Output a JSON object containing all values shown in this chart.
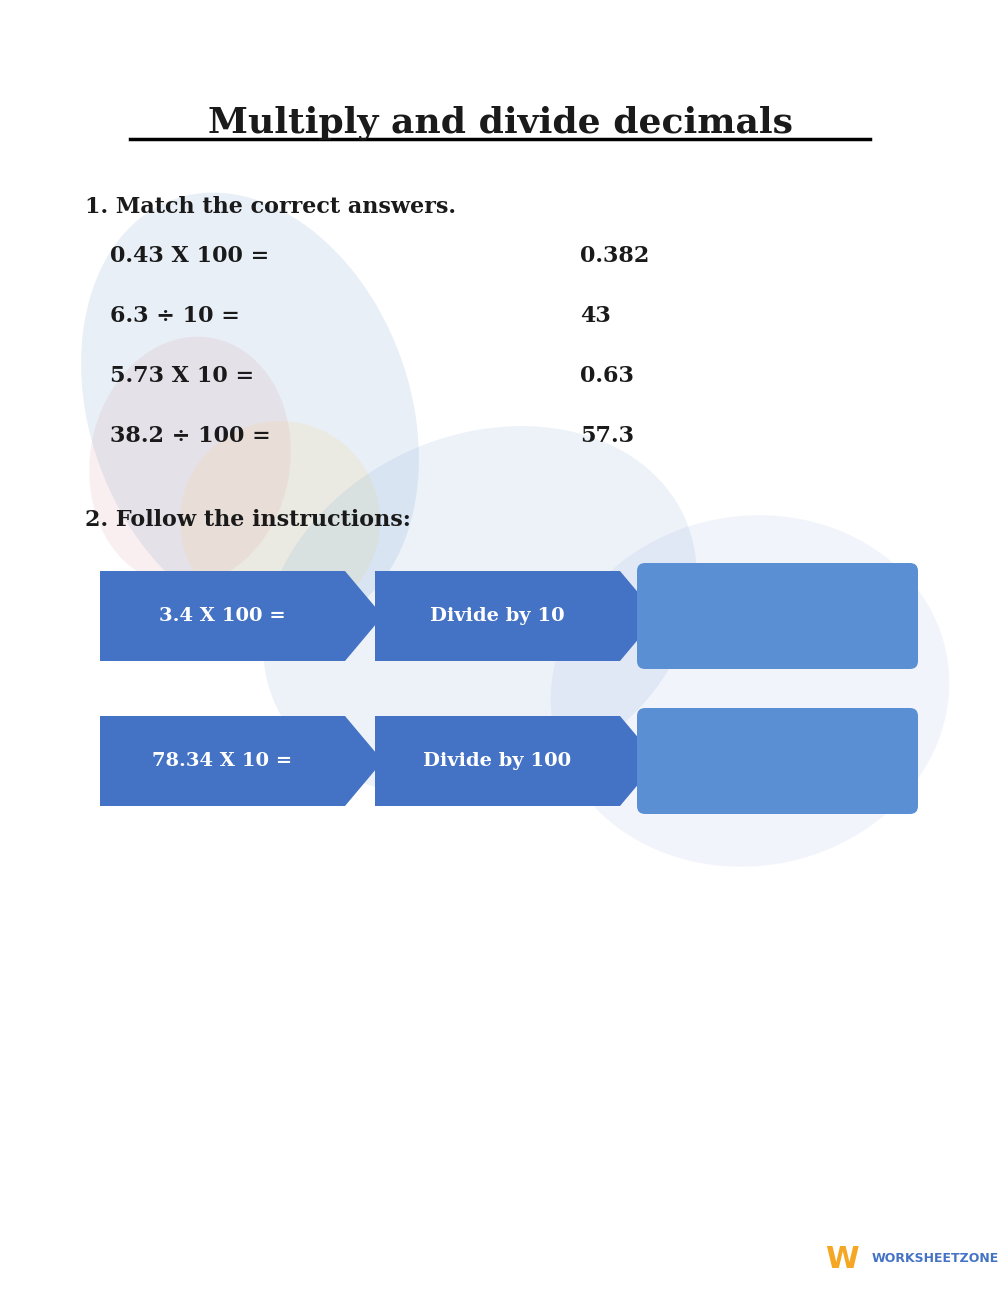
{
  "title": "Multiply and divide decimals",
  "background_color": "#ffffff",
  "section1_header": "1. Match the correct answers.",
  "section1_left": [
    "0.43 X 100 =",
    "6.3 ÷ 10 =",
    "5.73 X 10 =",
    "38.2 ÷ 100 ="
  ],
  "section1_right": [
    "0.382",
    "43",
    "0.63",
    "57.3"
  ],
  "section2_header": "2. Follow the instructions:",
  "row1_box1": "3.4 X 100 =",
  "row1_box2": "Divide by 10",
  "row1_box3": "",
  "row2_box1": "78.34 X 10 =",
  "row2_box2": "Divide by 100",
  "row2_box3": "",
  "box_color": "#4472C4",
  "box3_color": "#5B8FD4",
  "text_color_white": "#ffffff",
  "text_color_black": "#1a1a1a",
  "logo_color_w": "#F5A623",
  "logo_color_text": "#4472C4"
}
